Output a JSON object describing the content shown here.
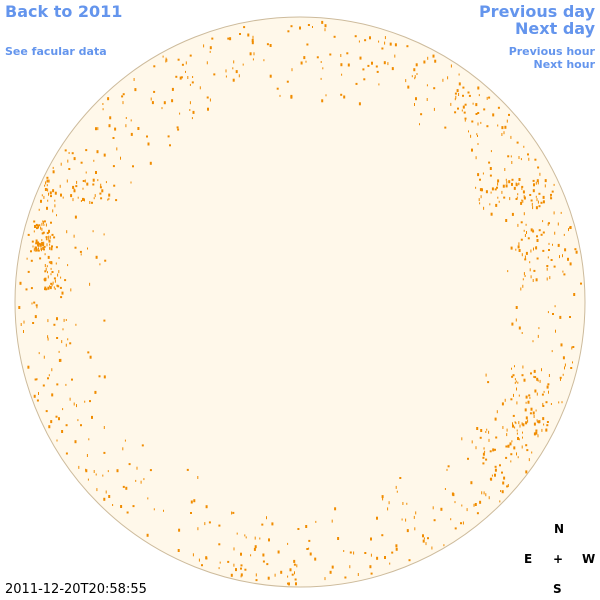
{
  "header": {
    "back_link": "Back to 2011",
    "facular_link": "See facular data",
    "previous_day": "Previous day",
    "next_day": "Next day",
    "previous_hour": "Previous hour",
    "next_hour": "Next hour"
  },
  "timestamp": "2011-12-20T20:58:55",
  "compass": {
    "north": "N",
    "east": "E",
    "center": "+",
    "west": "W",
    "south": "S"
  }
}
